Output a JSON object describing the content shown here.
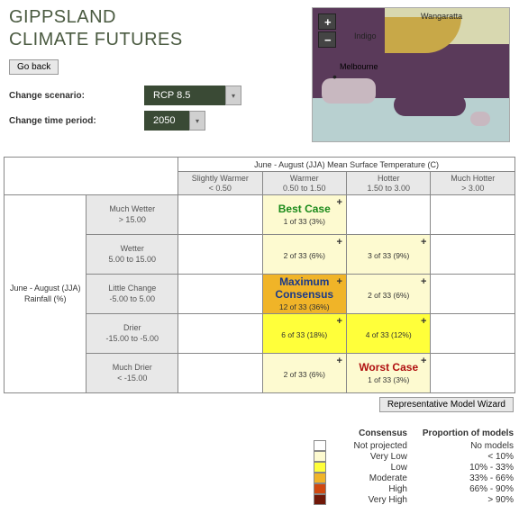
{
  "title_line1": "GIPPSLAND",
  "title_line2": "CLIMATE FUTURES",
  "go_back": "Go back",
  "controls": {
    "scenario_label": "Change scenario:",
    "scenario_value": "RCP 8.5",
    "period_label": "Change time period:",
    "period_value": "2050"
  },
  "map": {
    "zoom_in": "+",
    "zoom_out": "−",
    "city_wangaratta": "Wangaratta",
    "city_indigo": "Indigo",
    "city_melbourne": "Melbourne"
  },
  "matrix": {
    "col_super": "June - August (JJA) Mean Surface Temperature (C)",
    "cols": [
      {
        "label": "Slightly Warmer",
        "range": "< 0.50"
      },
      {
        "label": "Warmer",
        "range": "0.50 to 1.50"
      },
      {
        "label": "Hotter",
        "range": "1.50 to 3.00"
      },
      {
        "label": "Much Hotter",
        "range": "> 3.00"
      }
    ],
    "row_super_l1": "June - August (JJA)",
    "row_super_l2": "Rainfall (%)",
    "rows": [
      {
        "label": "Much Wetter",
        "range": "> 15.00"
      },
      {
        "label": "Wetter",
        "range": "5.00 to 15.00"
      },
      {
        "label": "Little Change",
        "range": "-5.00 to 5.00"
      },
      {
        "label": "Drier",
        "range": "-15.00 to -5.00"
      },
      {
        "label": "Much Drier",
        "range": "< -15.00"
      }
    ],
    "cells": {
      "r0c1": {
        "tag": "Best Case",
        "count": "1 of 33 (3%)",
        "class": "c-verylow",
        "tagclass": "best"
      },
      "r1c1": {
        "count": "2 of 33 (6%)",
        "class": "c-verylow"
      },
      "r1c2": {
        "count": "3 of 33 (9%)",
        "class": "c-verylow"
      },
      "r2c1": {
        "tag": "Maximum Consensus",
        "count": "12 of 33 (36%)",
        "class": "c-mod",
        "tagclass": "max"
      },
      "r2c2": {
        "count": "2 of 33 (6%)",
        "class": "c-verylow"
      },
      "r3c1": {
        "count": "6 of 33 (18%)",
        "class": "c-low"
      },
      "r3c2": {
        "count": "4 of 33 (12%)",
        "class": "c-low"
      },
      "r4c1": {
        "count": "2 of 33 (6%)",
        "class": "c-verylow"
      },
      "r4c2": {
        "tag": "Worst Case",
        "count": "1 of 33 (3%)",
        "class": "c-verylow",
        "tagclass": "worst"
      }
    }
  },
  "wizard": "Representative Model Wizard",
  "legend": {
    "h1": "Consensus",
    "h2": "Proportion of models",
    "rows": [
      {
        "sw": "sw-none",
        "label": "Not projected",
        "prop": "No models"
      },
      {
        "sw": "sw-vlow",
        "label": "Very Low",
        "prop": "< 10%"
      },
      {
        "sw": "sw-low",
        "label": "Low",
        "prop": "10% - 33%"
      },
      {
        "sw": "sw-mod",
        "label": "Moderate",
        "prop": "33% - 66%"
      },
      {
        "sw": "sw-high",
        "label": "High",
        "prop": "66% - 90%"
      },
      {
        "sw": "sw-vhigh",
        "label": "Very High",
        "prop": "> 90%"
      }
    ]
  },
  "plus": "+"
}
